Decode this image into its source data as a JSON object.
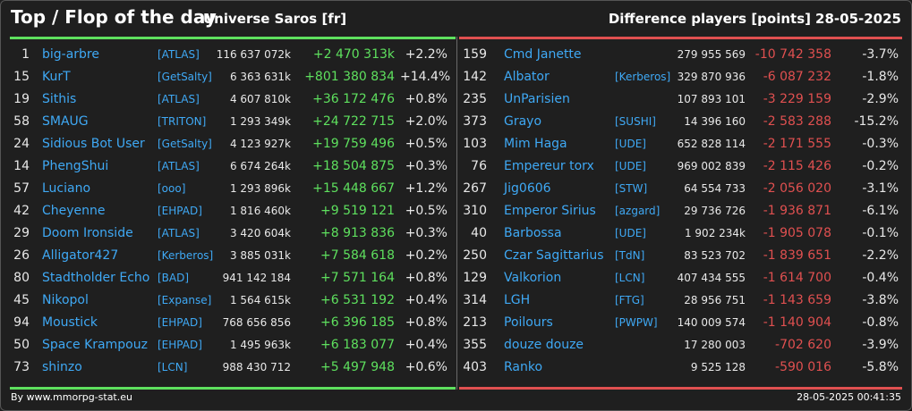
{
  "header": {
    "title": "Top / Flop of the day",
    "universe": "Universe Saros [fr]",
    "metric": "Difference players [points]",
    "date": "28-05-2025"
  },
  "colors": {
    "top_accent": "#5ee05e",
    "flop_accent": "#e05050",
    "link": "#3fa9f5",
    "background": "#1f1f1f"
  },
  "top": [
    {
      "rank": "1",
      "name": "big-arbre",
      "alliance": "[ATLAS]",
      "points": "116 637 072k",
      "diff": "+2 470 313k",
      "pct": "+2.2%"
    },
    {
      "rank": "15",
      "name": "KurT",
      "alliance": "[GetSalty]",
      "points": "6 363 631k",
      "diff": "+801 380 834",
      "pct": "+14.4%"
    },
    {
      "rank": "19",
      "name": "Sithis",
      "alliance": "[ATLAS]",
      "points": "4 607 810k",
      "diff": "+36 172 476",
      "pct": "+0.8%"
    },
    {
      "rank": "58",
      "name": "SMAUG",
      "alliance": "[TRITON]",
      "points": "1 293 349k",
      "diff": "+24 722 715",
      "pct": "+2.0%"
    },
    {
      "rank": "24",
      "name": "Sidious Bot User",
      "alliance": "[GetSalty]",
      "points": "4 123 927k",
      "diff": "+19 759 496",
      "pct": "+0.5%"
    },
    {
      "rank": "14",
      "name": "PhengShui",
      "alliance": "[ATLAS]",
      "points": "6 674 264k",
      "diff": "+18 504 875",
      "pct": "+0.3%"
    },
    {
      "rank": "57",
      "name": "Luciano",
      "alliance": "[ooo]",
      "points": "1 293 896k",
      "diff": "+15 448 667",
      "pct": "+1.2%"
    },
    {
      "rank": "42",
      "name": "Cheyenne",
      "alliance": "[EHPAD]",
      "points": "1 816 460k",
      "diff": "+9 519 121",
      "pct": "+0.5%"
    },
    {
      "rank": "29",
      "name": "Doom Ironside",
      "alliance": "[ATLAS]",
      "points": "3 420 604k",
      "diff": "+8 913 836",
      "pct": "+0.3%"
    },
    {
      "rank": "26",
      "name": "Alligator427",
      "alliance": "[Kerberos]",
      "points": "3 885 031k",
      "diff": "+7 584 618",
      "pct": "+0.2%"
    },
    {
      "rank": "80",
      "name": "Stadtholder Echo",
      "alliance": "[BAD]",
      "points": "941 142 184",
      "diff": "+7 571 164",
      "pct": "+0.8%"
    },
    {
      "rank": "45",
      "name": "Nikopol",
      "alliance": "[Expanse]",
      "points": "1 564 615k",
      "diff": "+6 531 192",
      "pct": "+0.4%"
    },
    {
      "rank": "94",
      "name": "Moustick",
      "alliance": "[EHPAD]",
      "points": "768 656 856",
      "diff": "+6 396 185",
      "pct": "+0.8%"
    },
    {
      "rank": "50",
      "name": "Space Krampouz",
      "alliance": "[EHPAD]",
      "points": "1 495 963k",
      "diff": "+6 183 077",
      "pct": "+0.4%"
    },
    {
      "rank": "73",
      "name": "shinzo",
      "alliance": "[LCN]",
      "points": "988 430 712",
      "diff": "+5 497 948",
      "pct": "+0.6%"
    }
  ],
  "flop": [
    {
      "rank": "159",
      "name": "Cmd Janette",
      "alliance": "",
      "points": "279 955 569",
      "diff": "-10 742 358",
      "pct": "-3.7%"
    },
    {
      "rank": "142",
      "name": "Albator",
      "alliance": "[Kerberos]",
      "points": "329 870 936",
      "diff": "-6 087 232",
      "pct": "-1.8%"
    },
    {
      "rank": "235",
      "name": "UnParisien",
      "alliance": "",
      "points": "107 893 101",
      "diff": "-3 229 159",
      "pct": "-2.9%"
    },
    {
      "rank": "373",
      "name": "Grayo",
      "alliance": "[SUSHI]",
      "points": "14 396 160",
      "diff": "-2 583 288",
      "pct": "-15.2%"
    },
    {
      "rank": "103",
      "name": "Mim Haga",
      "alliance": "[UDE]",
      "points": "652 828 114",
      "diff": "-2 171 555",
      "pct": "-0.3%"
    },
    {
      "rank": "76",
      "name": "Empereur torx",
      "alliance": "[UDE]",
      "points": "969 002 839",
      "diff": "-2 115 426",
      "pct": "-0.2%"
    },
    {
      "rank": "267",
      "name": "Jig0606",
      "alliance": "[STW]",
      "points": "64 554 733",
      "diff": "-2 056 020",
      "pct": "-3.1%"
    },
    {
      "rank": "310",
      "name": "Emperor Sirius",
      "alliance": "[azgard]",
      "points": "29 736 726",
      "diff": "-1 936 871",
      "pct": "-6.1%"
    },
    {
      "rank": "40",
      "name": "Barbossa",
      "alliance": "[UDE]",
      "points": "1 902 234k",
      "diff": "-1 905 078",
      "pct": "-0.1%"
    },
    {
      "rank": "250",
      "name": "Czar Sagittarius",
      "alliance": "[TdN]",
      "points": "83 523 702",
      "diff": "-1 839 651",
      "pct": "-2.2%"
    },
    {
      "rank": "129",
      "name": "Valkorion",
      "alliance": "[LCN]",
      "points": "407 434 555",
      "diff": "-1 614 700",
      "pct": "-0.4%"
    },
    {
      "rank": "314",
      "name": "LGH",
      "alliance": "[FTG]",
      "points": "28 956 751",
      "diff": "-1 143 659",
      "pct": "-3.8%"
    },
    {
      "rank": "213",
      "name": "Poilours",
      "alliance": "[PWPW]",
      "points": "140 009 574",
      "diff": "-1 140 904",
      "pct": "-0.8%"
    },
    {
      "rank": "355",
      "name": "douze douze",
      "alliance": "",
      "points": "17 280 003",
      "diff": "-702 620",
      "pct": "-3.9%"
    },
    {
      "rank": "403",
      "name": "Ranko",
      "alliance": "",
      "points": "9 525 128",
      "diff": "-590 016",
      "pct": "-5.8%"
    }
  ],
  "footer": {
    "credit": "By www.mmorpg-stat.eu",
    "timestamp": "28-05-2025 00:41:35"
  }
}
